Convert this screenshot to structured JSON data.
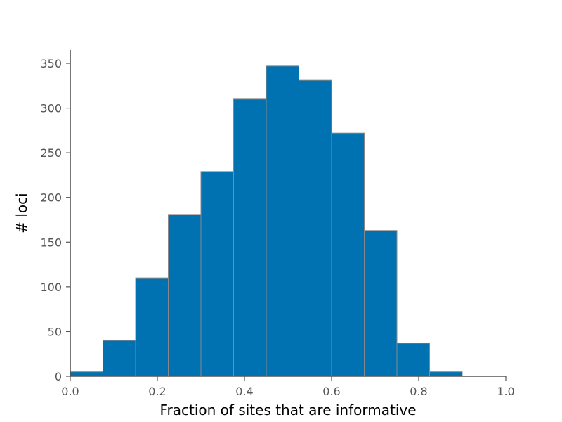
{
  "chart_data": {
    "type": "bar",
    "title": "",
    "xlabel": "Fraction of sites that are informative",
    "ylabel": "# loci",
    "xlim": [
      0.0,
      1.0
    ],
    "ylim": [
      0,
      365
    ],
    "xticks": [
      0.0,
      0.2,
      0.4,
      0.6,
      0.8,
      1.0
    ],
    "xtick_labels": [
      "0.0",
      "0.2",
      "0.4",
      "0.6",
      "0.8",
      "1.0"
    ],
    "yticks": [
      0,
      50,
      100,
      150,
      200,
      250,
      300,
      350
    ],
    "ytick_labels": [
      "0",
      "50",
      "100",
      "150",
      "200",
      "250",
      "300",
      "350"
    ],
    "bin_edges": [
      0.0,
      0.075,
      0.15,
      0.225,
      0.3,
      0.375,
      0.45,
      0.525,
      0.6,
      0.675,
      0.75,
      0.825,
      0.9
    ],
    "values": [
      5,
      40,
      110,
      181,
      229,
      310,
      347,
      331,
      272,
      163,
      37,
      5
    ],
    "bar_color": "#0072b2",
    "edge_color": "#888888",
    "grid": false,
    "legend": "none"
  }
}
